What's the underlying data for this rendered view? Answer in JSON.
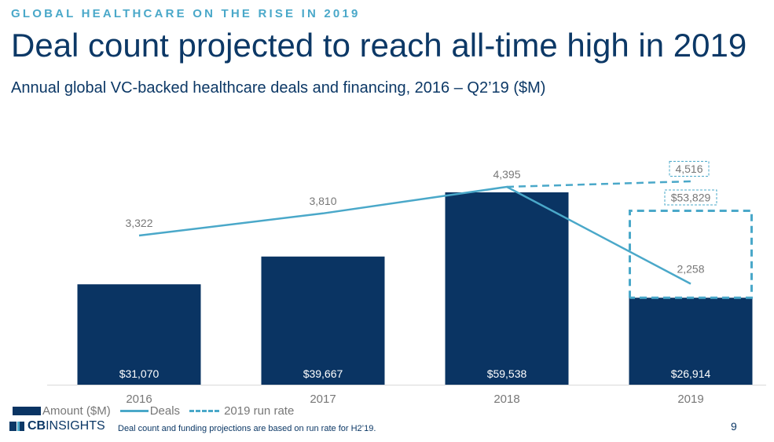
{
  "header": {
    "eyebrow": "GLOBAL HEALTHCARE ON THE RISE IN 2019",
    "title": "Deal count projected to reach all-time high in 2019",
    "subtitle": "Annual global VC-backed healthcare deals and financing, 2016 – Q2’19 ($M)"
  },
  "chart_data": {
    "type": "bar",
    "categories": [
      "2016",
      "2017",
      "2018",
      "2019"
    ],
    "series": [
      {
        "name": "Amount ($M)",
        "type": "bar",
        "values": [
          31070,
          39667,
          59538,
          26914
        ],
        "labels": [
          "$31,070",
          "$39,667",
          "$59,538",
          "$26,914"
        ]
      },
      {
        "name": "Deals",
        "type": "line",
        "values": [
          3322,
          3810,
          4395,
          2258
        ],
        "labels": [
          "3,322",
          "3,810",
          "4,395",
          "2,258"
        ]
      },
      {
        "name": "2019 run rate",
        "type": "projection",
        "deals_value": 4516,
        "deals_label": "4,516",
        "amount_value": 53829,
        "amount_label": "$53,829"
      }
    ],
    "legend_position": "bottom-left",
    "grid": false,
    "colors": {
      "bar": "#0a3463",
      "line": "#4aa8c9",
      "text": "#777777",
      "dash_box": "#4aa8c9"
    }
  },
  "legend": {
    "amount": "Amount ($M)",
    "deals": "Deals",
    "run_rate": "2019 run rate"
  },
  "footer": {
    "logo_cb": "CB",
    "logo_insights": "INSIGHTS",
    "footnote": "Deal count and funding projections are based on run rate for H2’19.",
    "page_number": "9"
  }
}
